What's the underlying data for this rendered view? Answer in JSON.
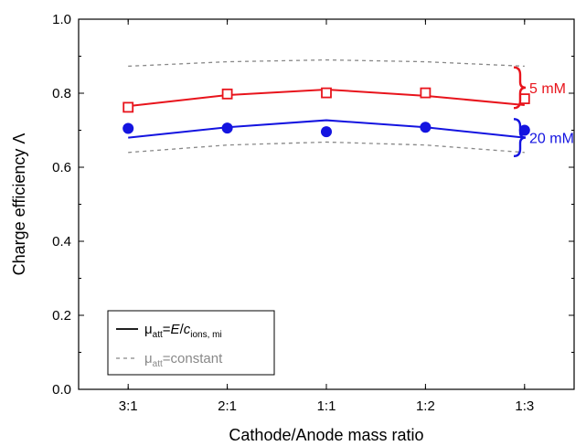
{
  "chart_data": {
    "type": "line",
    "xlabel": "Cathode/Anode mass ratio",
    "ylabel": "Charge efficiency Λ",
    "categories": [
      "3:1",
      "2:1",
      "1:1",
      "1:2",
      "1:3"
    ],
    "xlim": [
      -0.5,
      4.5
    ],
    "ylim": [
      0.0,
      1.0
    ],
    "yticks": [
      "0.0",
      "0.2",
      "0.4",
      "0.6",
      "0.8",
      "1.0"
    ],
    "grid": false,
    "legend_position": "bottom-left",
    "series": [
      {
        "group": "5 mM",
        "kind": "markers",
        "marker": "open-square",
        "color": "#e8141c",
        "values": [
          0.762,
          0.798,
          0.801,
          0.801,
          0.785
        ]
      },
      {
        "group": "5 mM",
        "kind": "solid-line",
        "color": "#e8141c",
        "values": [
          0.765,
          0.795,
          0.81,
          0.793,
          0.768
        ]
      },
      {
        "group": "20 mM",
        "kind": "markers",
        "marker": "filled-circle",
        "color": "#1414e0",
        "values": [
          0.705,
          0.706,
          0.696,
          0.708,
          0.7
        ]
      },
      {
        "group": "20 mM",
        "kind": "solid-line",
        "color": "#1414e0",
        "values": [
          0.68,
          0.708,
          0.727,
          0.708,
          0.68
        ]
      },
      {
        "group": "upper bound",
        "kind": "dashed-line",
        "color": "#888888",
        "values": [
          0.873,
          0.885,
          0.89,
          0.885,
          0.873
        ]
      },
      {
        "group": "lower bound",
        "kind": "dashed-line",
        "color": "#888888",
        "values": [
          0.64,
          0.66,
          0.668,
          0.66,
          0.64
        ]
      }
    ],
    "annotations": [
      {
        "text": "5 mM",
        "color": "#e8141c",
        "range": [
          0.76,
          0.87
        ]
      },
      {
        "text": "20 mM",
        "color": "#1414e0",
        "range": [
          0.63,
          0.73
        ]
      }
    ],
    "legend": [
      {
        "style": "solid",
        "color": "#000000",
        "mu": "μ",
        "mu_sub": "att",
        "mid": "=",
        "italic": "E",
        "slash": "/",
        "c": "c",
        "c_sub": "ions, mi",
        "rest": ""
      },
      {
        "style": "dashed",
        "color": "#888888",
        "mu": "μ",
        "mu_sub": "att",
        "mid": "=",
        "italic": "",
        "slash": "",
        "c": "",
        "c_sub": "",
        "rest": "constant"
      }
    ]
  }
}
